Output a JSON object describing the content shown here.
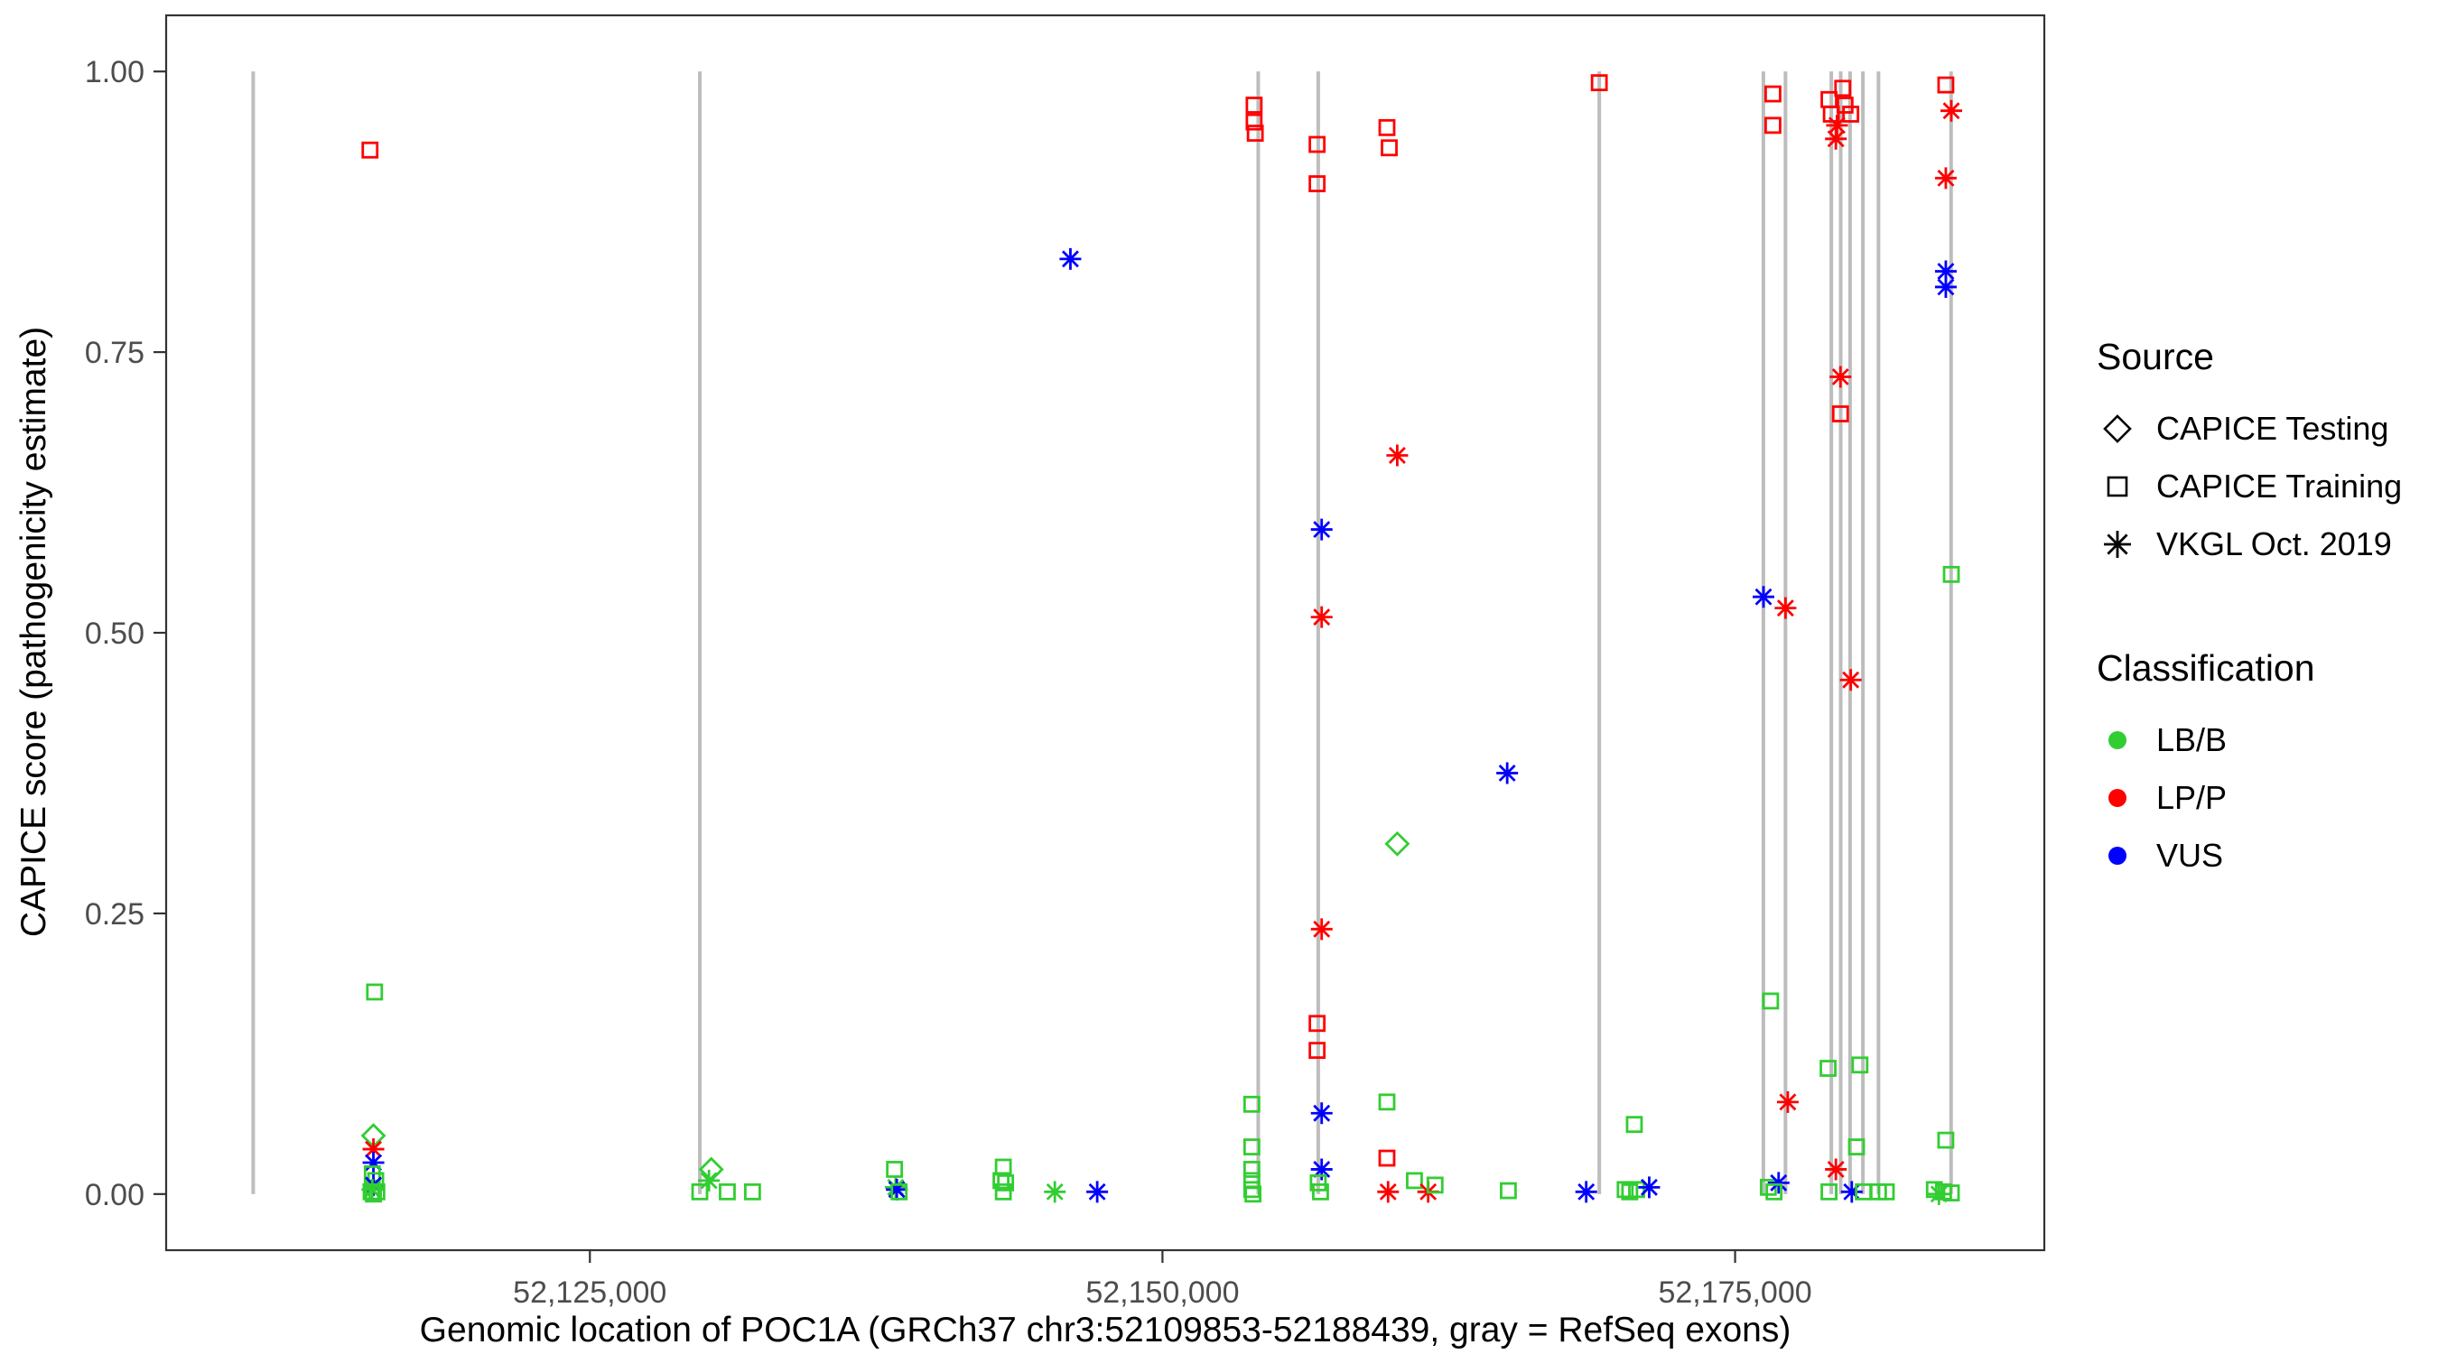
{
  "figure": {
    "x_axis": {
      "title": "Genomic location of POC1A (GRCh37 chr3:52109853-52188439, gray = RefSeq exons)",
      "ticks": [
        {
          "value": 52125000,
          "label": "52,125,000"
        },
        {
          "value": 52150000,
          "label": "52,150,000"
        },
        {
          "value": 52175000,
          "label": "52,175,000"
        }
      ]
    },
    "y_axis": {
      "title": "CAPICE score (pathogenicity estimate)",
      "ticks": [
        {
          "value": 0.0,
          "label": "0.00"
        },
        {
          "value": 0.25,
          "label": "0.25"
        },
        {
          "value": 0.5,
          "label": "0.50"
        },
        {
          "value": 0.75,
          "label": "0.75"
        },
        {
          "value": 1.0,
          "label": "1.00"
        }
      ]
    },
    "legend": {
      "source": {
        "title": "Source",
        "items": [
          {
            "label": "CAPICE Testing",
            "shape": "diamond"
          },
          {
            "label": "CAPICE Training",
            "shape": "square"
          },
          {
            "label": "VKGL Oct. 2019",
            "shape": "asterisk"
          }
        ]
      },
      "classification": {
        "title": "Classification",
        "items": [
          {
            "label": "LB/B",
            "color": "#32CD32"
          },
          {
            "label": "LP/P",
            "color": "#FF0000"
          },
          {
            "label": "VUS",
            "color": "#0000FF"
          }
        ]
      }
    },
    "colors": {
      "exon": "#BDBDBD",
      "panel_border": "#333333",
      "tick_text": "#4D4D4D"
    }
  },
  "chart_data": {
    "type": "scatter",
    "title": "",
    "xlabel": "Genomic location of POC1A (GRCh37 chr3:52109853-52188439, gray = RefSeq exons)",
    "ylabel": "CAPICE score (pathogenicity estimate)",
    "x_range": [
      52106500,
      52188500
    ],
    "y_range": [
      -0.05,
      1.05
    ],
    "grid": false,
    "legend_position": "right",
    "class_colors": {
      "LB/B": "#32CD32",
      "LP/P": "#FF0000",
      "VUS": "#0000FF"
    },
    "source_codes": {
      "testing": "CAPICE Testing",
      "training": "CAPICE Training",
      "vkgl": "VKGL Oct. 2019"
    },
    "source_shapes": {
      "testing": "diamond",
      "training": "square",
      "vkgl": "asterisk"
    },
    "exons_x": [
      52110300,
      52129800,
      52154180,
      52156800,
      52169070,
      52176235,
      52177200,
      52179200,
      52179610,
      52180020,
      52180580,
      52181260,
      52184430
    ],
    "exon_y_span": [
      0.0,
      1.0
    ],
    "point_format": [
      "x",
      "y",
      "source",
      "classification"
    ],
    "points": [
      [
        52115400,
        0.93,
        "training",
        "LP/P"
      ],
      [
        52115600,
        0.18,
        "training",
        "LB/B"
      ],
      [
        52115550,
        0.052,
        "testing",
        "LB/B"
      ],
      [
        52115550,
        0.04,
        "vkgl",
        "LP/P"
      ],
      [
        52115550,
        0.028,
        "vkgl",
        "VUS"
      ],
      [
        52115500,
        0.018,
        "training",
        "LB/B"
      ],
      [
        52115650,
        0.012,
        "training",
        "LB/B"
      ],
      [
        52115550,
        0.008,
        "vkgl",
        "VUS"
      ],
      [
        52115500,
        0.004,
        "vkgl",
        "LB/B"
      ],
      [
        52115450,
        0.002,
        "training",
        "LB/B"
      ],
      [
        52115700,
        0.002,
        "training",
        "LB/B"
      ],
      [
        52115550,
        0.0,
        "training",
        "LB/B"
      ],
      [
        52130300,
        0.022,
        "testing",
        "LB/B"
      ],
      [
        52130200,
        0.012,
        "vkgl",
        "LB/B"
      ],
      [
        52129800,
        0.002,
        "training",
        "LB/B"
      ],
      [
        52131000,
        0.002,
        "training",
        "LB/B"
      ],
      [
        52132100,
        0.002,
        "training",
        "LB/B"
      ],
      [
        52138300,
        0.022,
        "training",
        "LB/B"
      ],
      [
        52138350,
        0.006,
        "vkgl",
        "LB/B"
      ],
      [
        52138400,
        0.004,
        "vkgl",
        "VUS"
      ],
      [
        52138500,
        0.002,
        "training",
        "LB/B"
      ],
      [
        52143050,
        0.024,
        "training",
        "LB/B"
      ],
      [
        52142950,
        0.012,
        "training",
        "LB/B"
      ],
      [
        52143150,
        0.01,
        "training",
        "LB/B"
      ],
      [
        52143050,
        0.002,
        "training",
        "LB/B"
      ],
      [
        52145300,
        0.002,
        "vkgl",
        "LB/B"
      ],
      [
        52145980,
        0.833,
        "vkgl",
        "VUS"
      ],
      [
        52147150,
        0.002,
        "vkgl",
        "VUS"
      ],
      [
        52154000,
        0.97,
        "training",
        "LP/P"
      ],
      [
        52154000,
        0.955,
        "training",
        "LP/P"
      ],
      [
        52154050,
        0.945,
        "training",
        "LP/P"
      ],
      [
        52153900,
        0.08,
        "training",
        "LB/B"
      ],
      [
        52153900,
        0.042,
        "training",
        "LB/B"
      ],
      [
        52153900,
        0.022,
        "training",
        "LB/B"
      ],
      [
        52153900,
        0.012,
        "training",
        "LB/B"
      ],
      [
        52153900,
        0.004,
        "training",
        "LB/B"
      ],
      [
        52153950,
        0.0,
        "training",
        "LB/B"
      ],
      [
        52156750,
        0.935,
        "training",
        "LP/P"
      ],
      [
        52156750,
        0.9,
        "training",
        "LP/P"
      ],
      [
        52156950,
        0.592,
        "vkgl",
        "VUS"
      ],
      [
        52156950,
        0.514,
        "vkgl",
        "LP/P"
      ],
      [
        52156950,
        0.236,
        "vkgl",
        "LP/P"
      ],
      [
        52156750,
        0.152,
        "training",
        "LP/P"
      ],
      [
        52156750,
        0.128,
        "training",
        "LP/P"
      ],
      [
        52156950,
        0.072,
        "vkgl",
        "VUS"
      ],
      [
        52156950,
        0.022,
        "vkgl",
        "VUS"
      ],
      [
        52156800,
        0.01,
        "training",
        "LB/B"
      ],
      [
        52156900,
        0.002,
        "training",
        "LB/B"
      ],
      [
        52159800,
        0.95,
        "training",
        "LP/P"
      ],
      [
        52159900,
        0.932,
        "training",
        "LP/P"
      ],
      [
        52160250,
        0.658,
        "vkgl",
        "LP/P"
      ],
      [
        52160250,
        0.312,
        "testing",
        "LB/B"
      ],
      [
        52159800,
        0.082,
        "training",
        "LB/B"
      ],
      [
        52159800,
        0.032,
        "training",
        "LP/P"
      ],
      [
        52159850,
        0.002,
        "vkgl",
        "LP/P"
      ],
      [
        52161000,
        0.012,
        "training",
        "LB/B"
      ],
      [
        52161600,
        0.002,
        "vkgl",
        "LP/P"
      ],
      [
        52161900,
        0.008,
        "training",
        "LB/B"
      ],
      [
        52165050,
        0.375,
        "vkgl",
        "VUS"
      ],
      [
        52165100,
        0.003,
        "training",
        "LB/B"
      ],
      [
        52169070,
        0.99,
        "training",
        "LP/P"
      ],
      [
        52168500,
        0.002,
        "vkgl",
        "VUS"
      ],
      [
        52170200,
        0.004,
        "training",
        "LB/B"
      ],
      [
        52170400,
        0.002,
        "training",
        "LB/B"
      ],
      [
        52170600,
        0.062,
        "training",
        "LB/B"
      ],
      [
        52170700,
        0.004,
        "training",
        "LB/B"
      ],
      [
        52171250,
        0.006,
        "vkgl",
        "VUS"
      ],
      [
        52176650,
        0.98,
        "training",
        "LP/P"
      ],
      [
        52176650,
        0.952,
        "training",
        "LP/P"
      ],
      [
        52176240,
        0.532,
        "vkgl",
        "VUS"
      ],
      [
        52177200,
        0.522,
        "vkgl",
        "LP/P"
      ],
      [
        52176550,
        0.172,
        "training",
        "LB/B"
      ],
      [
        52177300,
        0.082,
        "vkgl",
        "LP/P"
      ],
      [
        52176450,
        0.006,
        "training",
        "LB/B"
      ],
      [
        52176900,
        0.01,
        "vkgl",
        "VUS"
      ],
      [
        52176700,
        0.002,
        "training",
        "LB/B"
      ],
      [
        52179100,
        0.975,
        "training",
        "LP/P"
      ],
      [
        52179200,
        0.962,
        "training",
        "LP/P"
      ],
      [
        52179400,
        0.94,
        "vkgl",
        "LP/P"
      ],
      [
        52179450,
        0.952,
        "vkgl",
        "LP/P"
      ],
      [
        52179700,
        0.985,
        "training",
        "LP/P"
      ],
      [
        52179800,
        0.97,
        "training",
        "LP/P"
      ],
      [
        52180050,
        0.962,
        "training",
        "LP/P"
      ],
      [
        52179600,
        0.728,
        "vkgl",
        "LP/P"
      ],
      [
        52179600,
        0.695,
        "training",
        "LP/P"
      ],
      [
        52180050,
        0.458,
        "vkgl",
        "LP/P"
      ],
      [
        52179060,
        0.112,
        "training",
        "LB/B"
      ],
      [
        52180450,
        0.115,
        "training",
        "LB/B"
      ],
      [
        52180300,
        0.042,
        "training",
        "LB/B"
      ],
      [
        52179400,
        0.022,
        "vkgl",
        "LP/P"
      ],
      [
        52180095,
        0.002,
        "vkgl",
        "VUS"
      ],
      [
        52179100,
        0.002,
        "training",
        "LB/B"
      ],
      [
        52180600,
        0.002,
        "training",
        "LB/B"
      ],
      [
        52181260,
        0.002,
        "training",
        "LB/B"
      ],
      [
        52181600,
        0.002,
        "training",
        "LB/B"
      ],
      [
        52184200,
        0.988,
        "training",
        "LP/P"
      ],
      [
        52184440,
        0.965,
        "vkgl",
        "LP/P"
      ],
      [
        52184200,
        0.905,
        "vkgl",
        "LP/P"
      ],
      [
        52184200,
        0.822,
        "vkgl",
        "VUS"
      ],
      [
        52184200,
        0.808,
        "vkgl",
        "VUS"
      ],
      [
        52184440,
        0.552,
        "training",
        "LB/B"
      ],
      [
        52184200,
        0.048,
        "training",
        "LB/B"
      ],
      [
        52183700,
        0.004,
        "training",
        "LB/B"
      ],
      [
        52184100,
        0.002,
        "training",
        "LB/B"
      ],
      [
        52184440,
        0.001,
        "training",
        "LB/B"
      ],
      [
        52183900,
        0.0,
        "vkgl",
        "LB/B"
      ]
    ]
  }
}
